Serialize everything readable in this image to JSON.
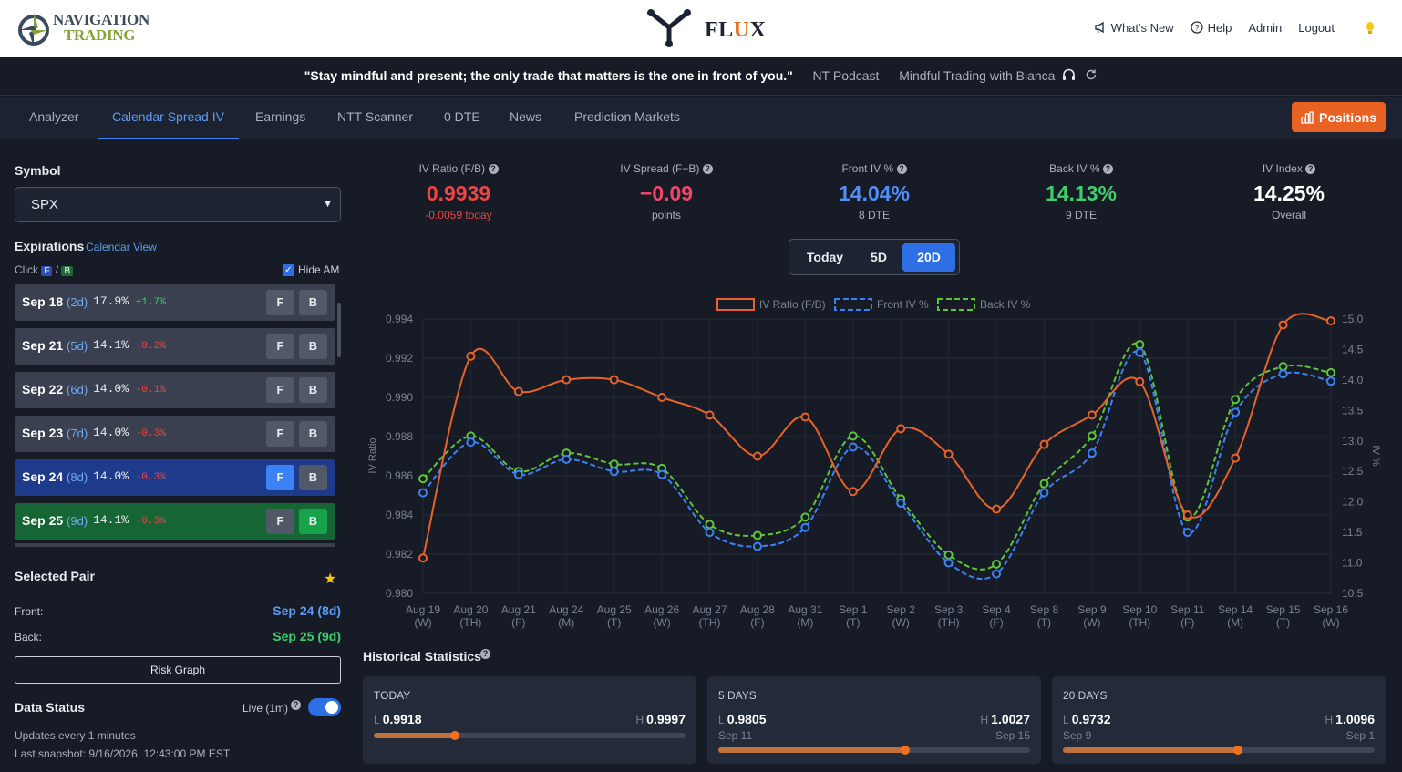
{
  "brand": {
    "nav_logo_line1": "NAVIGATION",
    "nav_logo_line2": "TRADING",
    "app_name_pre": "FL",
    "app_name_u": "U",
    "app_name_post": "X"
  },
  "top_links": {
    "whats_new": "What's New",
    "help": "Help",
    "admin": "Admin",
    "logout": "Logout"
  },
  "quote": {
    "text": "\"Stay mindful and present; the only trade that matters is the one in front of you.\"",
    "source": " — NT Podcast — Mindful Trading with Bianca"
  },
  "tabs": [
    "Analyzer",
    "Calendar Spread IV",
    "Earnings",
    "NTT Scanner",
    "0 DTE",
    "News",
    "Prediction Markets"
  ],
  "active_tab": "Calendar Spread IV",
  "positions_label": "Positions",
  "sidebar": {
    "symbol_label": "Symbol",
    "symbol_value": "SPX",
    "expirations_label": "Expirations",
    "calendar_view": "Calendar View",
    "click_label": "Click",
    "f_badge": "F",
    "b_badge": "B",
    "slash": "/",
    "hide_am": "Hide AM",
    "expirations": [
      {
        "date": "Sep 18",
        "dte": "(2d)",
        "iv": "17.9%",
        "change": "+1.7%",
        "state": "none"
      },
      {
        "date": "Sep 21",
        "dte": "(5d)",
        "iv": "14.1%",
        "change": "-0.2%",
        "state": "none"
      },
      {
        "date": "Sep 22",
        "dte": "(6d)",
        "iv": "14.0%",
        "change": "-0.1%",
        "state": "none"
      },
      {
        "date": "Sep 23",
        "dte": "(7d)",
        "iv": "14.0%",
        "change": "-0.3%",
        "state": "none"
      },
      {
        "date": "Sep 24",
        "dte": "(8d)",
        "iv": "14.0%",
        "change": "-0.3%",
        "state": "front"
      },
      {
        "date": "Sep 25",
        "dte": "(9d)",
        "iv": "14.1%",
        "change": "-0.3%",
        "state": "back"
      }
    ],
    "selected_pair_label": "Selected Pair",
    "front_label": "Front:",
    "front_value": "Sep 24 (8d)",
    "back_label": "Back:",
    "back_value": "Sep 25 (9d)",
    "risk_graph": "Risk Graph",
    "data_status_label": "Data Status",
    "live_label": "Live (1m)",
    "updates": "Updates every 1 minutes",
    "last_snapshot": "Last snapshot: 9/16/2026, 12:43:00 PM EST"
  },
  "metrics": [
    {
      "title": "IV Ratio (F/B)",
      "value": "0.9939",
      "sub": "-0.0059 today",
      "color": "#ef4444",
      "sub_color": "#ef4444"
    },
    {
      "title": "IV Spread (F−B)",
      "value": "−0.09",
      "sub": "points",
      "color": "#f0456a",
      "sub_color": "#aab1bd"
    },
    {
      "title": "Front IV %",
      "value": "14.04%",
      "sub": "8 DTE",
      "color": "#4f8ff7",
      "sub_color": "#aab1bd"
    },
    {
      "title": "Back IV %",
      "value": "14.13%",
      "sub": "9 DTE",
      "color": "#3ecf6a",
      "sub_color": "#aab1bd"
    },
    {
      "title": "IV Index",
      "value": "14.25%",
      "sub": "Overall",
      "color": "#ffffff",
      "sub_color": "#aab1bd"
    }
  ],
  "range_buttons": [
    "Today",
    "5D",
    "20D"
  ],
  "range_active": "20D",
  "chart_data": {
    "type": "line",
    "x": [
      "Aug 19",
      "Aug 20",
      "Aug 21",
      "Aug 24",
      "Aug 25",
      "Aug 26",
      "Aug 27",
      "Aug 28",
      "Aug 31",
      "Sep 1",
      "Sep 2",
      "Sep 3",
      "Sep 4",
      "Sep 8",
      "Sep 9",
      "Sep 10",
      "Sep 11",
      "Sep 14",
      "Sep 15",
      "Sep 16"
    ],
    "x_sub": [
      "(W)",
      "(TH)",
      "(F)",
      "(M)",
      "(T)",
      "(W)",
      "(TH)",
      "(F)",
      "(M)",
      "(T)",
      "(W)",
      "(TH)",
      "(F)",
      "(T)",
      "(W)",
      "(TH)",
      "(F)",
      "(M)",
      "(T)",
      "(W)"
    ],
    "series": [
      {
        "name": "IV Ratio (F/B)",
        "axis": "left",
        "color": "#e8622a",
        "dash": false,
        "values": [
          0.9818,
          0.9921,
          0.9903,
          0.9909,
          0.9909,
          0.99,
          0.9891,
          0.987,
          0.989,
          0.9852,
          0.9884,
          0.9871,
          0.9843,
          0.9876,
          0.9891,
          0.9908,
          0.984,
          0.9869,
          0.9937,
          0.9939
        ]
      },
      {
        "name": "Front IV %",
        "axis": "right",
        "color": "#3b82f6",
        "dash": true,
        "values": [
          12.15,
          12.98,
          12.45,
          12.7,
          12.5,
          12.45,
          11.5,
          11.27,
          11.58,
          12.9,
          11.98,
          11.0,
          10.82,
          12.15,
          12.8,
          14.45,
          11.5,
          13.47,
          14.1,
          13.98
        ]
      },
      {
        "name": "Back IV %",
        "axis": "right",
        "color": "#5ec43a",
        "dash": true,
        "values": [
          12.38,
          13.08,
          12.5,
          12.8,
          12.62,
          12.55,
          11.63,
          11.45,
          11.75,
          13.08,
          12.05,
          11.13,
          10.98,
          12.3,
          13.08,
          14.58,
          11.75,
          13.68,
          14.22,
          14.12
        ]
      }
    ],
    "ylabel_left": "IV Ratio",
    "ylabel_right": "IV %",
    "ylim_left": [
      0.98,
      0.994
    ],
    "ylim_right": [
      10.5,
      15.0
    ],
    "yticks_left": [
      "0.994",
      "0.992",
      "0.990",
      "0.988",
      "0.986",
      "0.984",
      "0.982",
      "0.980"
    ],
    "yticks_right": [
      "15.0",
      "14.5",
      "14.0",
      "13.5",
      "13.0",
      "12.5",
      "12.0",
      "11.5",
      "11.0",
      "10.5"
    ],
    "legend_position": "top-center",
    "grid": true
  },
  "historical": {
    "title": "Historical Statistics",
    "cards": [
      {
        "title": "TODAY",
        "low_label": "L",
        "low": "0.9918",
        "high_label": "H",
        "high": "0.9997",
        "low_date": "",
        "high_date": "",
        "position": 0.26
      },
      {
        "title": "5 DAYS",
        "low_label": "L",
        "low": "0.9805",
        "high_label": "H",
        "high": "1.0027",
        "low_date": "Sep 11",
        "high_date": "Sep 15",
        "position": 0.6
      },
      {
        "title": "20 DAYS",
        "low_label": "L",
        "low": "0.9732",
        "high_label": "H",
        "high": "1.0096",
        "low_date": "Sep 9",
        "high_date": "Sep 1",
        "position": 0.56
      }
    ]
  }
}
